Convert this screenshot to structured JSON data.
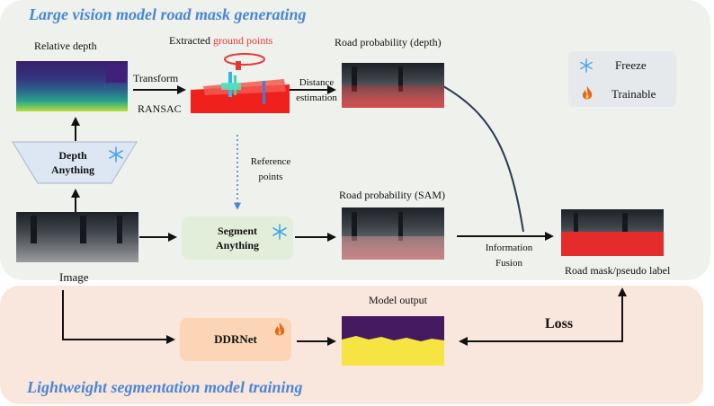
{
  "sections": {
    "top_title": "Large vision model road mask generating",
    "bottom_title": "Lightweight segmentation model training"
  },
  "legend": {
    "freeze": "Freeze",
    "trainable": "Trainable"
  },
  "nodes": {
    "relative_depth": "Relative depth",
    "extracted_prefix": "Extracted",
    "extracted_highlight": "ground points",
    "road_prob_depth": "Road probability (depth)",
    "road_prob_sam": "Road probability (SAM)",
    "image": "Image",
    "road_mask": "Road mask/pseudo  label",
    "model_output": "Model output"
  },
  "boxes": {
    "depth_anything_line1": "Depth",
    "depth_anything_line2": "Anything",
    "segment_anything_line1": "Segment",
    "segment_anything_line2": "Anything",
    "ddrnet": "DDRNet"
  },
  "edges": {
    "transform": "Transform",
    "ransac": "RANSAC",
    "distance1": "Distance",
    "distance2": "estimation",
    "reference1": "Reference",
    "reference2": "points",
    "info1": "Information",
    "info2": "Fusion",
    "loss": "Loss"
  },
  "colors": {
    "section_title": "#4a86d6",
    "highlight": "#e53935",
    "freeze_icon": "#4aa3e6",
    "trainable_icon": "#e8641e",
    "top_panel": "#eef1ec",
    "bottom_panel": "#f9e6dd"
  },
  "icons": {
    "freeze": "snowflake-icon",
    "trainable": "flame-icon"
  }
}
